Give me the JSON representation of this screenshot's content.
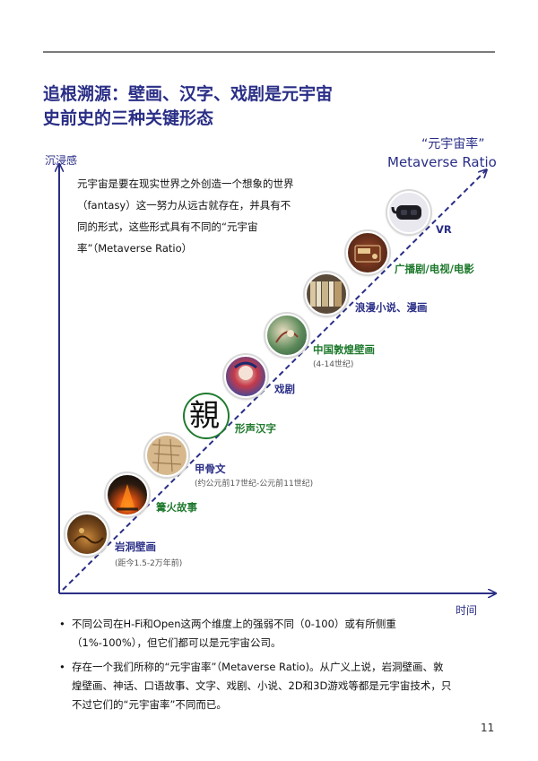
{
  "title": {
    "line1": "追根溯源：壁画、汉字、戏剧是元宇宙",
    "line2": "史前史的三种关键形态"
  },
  "chart_data": {
    "type": "line",
    "ylabel": "沉浸感",
    "xlabel": "时间",
    "ratio_label_cn": "“元宇宙率”",
    "ratio_label_en": "Metaverse Ratio",
    "stages": [
      {
        "name": "岩洞壁画",
        "note": "(距今1.5-2万年前)",
        "color": "#2a2e86"
      },
      {
        "name": "篝火故事",
        "note": "",
        "color": "#1f7a2e"
      },
      {
        "name": "甲骨文",
        "note": "(约公元前17世纪-公元前11世纪)",
        "color": "#2a2e86"
      },
      {
        "name": "形声汉字",
        "note": "",
        "color": "#1f7a2e"
      },
      {
        "name": "戏剧",
        "note": "",
        "color": "#2a2e86"
      },
      {
        "name": "中国敦煌壁画",
        "note": "(4-14世纪)",
        "color": "#1f7a2e"
      },
      {
        "name": "浪漫小说、漫画",
        "note": "",
        "color": "#2a2e86"
      },
      {
        "name": "广播剧/电视/电影",
        "note": "",
        "color": "#1f7a2e"
      },
      {
        "name": "VR",
        "note": "",
        "color": "#2a2e86"
      }
    ],
    "glyph": "親"
  },
  "intro_text": "元宇宙是要在现实世界之外创造一个想象的世界（fantasy）这一努力从远古就存在，并具有不同的形式，这些形式具有不同的“元宇宙率”（Metaverse Ratio）",
  "bullets": [
    "不同公司在H-Fi和Open这两个维度上的强弱不同（0-100）或有所侧重（1%-100%），但它们都可以是元宇宙公司。",
    "存在一个我们所称的“元宇宙率”（Metaverse Ratio)。从广义上说，岩洞壁画、敦煌壁画、神话、口语故事、文字、戏剧、小说、2D和3D游戏等都是元宇宙技术，只不过它们的“元宇宙率”不同而已。"
  ],
  "bullet_symbol": "•",
  "page_number": "11",
  "colors": {
    "navy": "#2a2e86",
    "green": "#1f7a2e"
  }
}
